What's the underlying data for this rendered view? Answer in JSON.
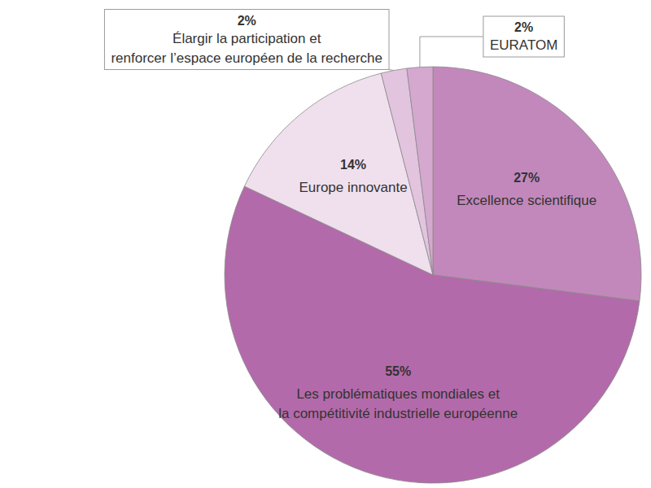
{
  "chart_data": {
    "type": "pie",
    "categories": [
      "Excellence scientifique",
      "Les problématiques mondiales et\nla compétitivité industrielle européenne",
      "Europe innovante",
      "Élargir la participation et\nrenforcer l’espace européen de la recherche",
      "EURATOM"
    ],
    "values": [
      27,
      55,
      14,
      2,
      2
    ],
    "value_labels": [
      "27%",
      "55%",
      "14%",
      "2%",
      "2%"
    ],
    "colors": [
      "#c288bb",
      "#b36aaa",
      "#f0e0ee",
      "#e2c4df",
      "#d4a8cf"
    ],
    "data_labels": true
  }
}
